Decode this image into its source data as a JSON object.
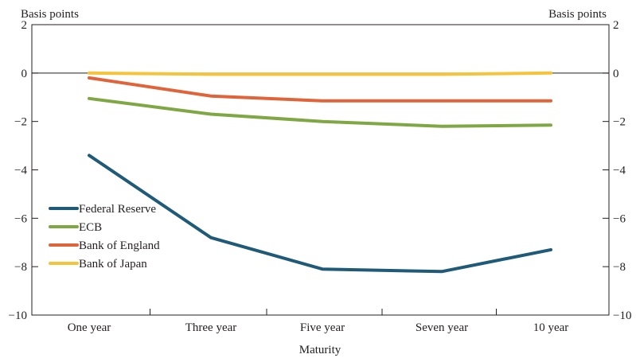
{
  "chart_data": {
    "type": "line",
    "xlabel": "Maturity",
    "ylabel_left": "Basis points",
    "ylabel_right": "Basis points",
    "ylim": [
      -10,
      2
    ],
    "yticks": [
      2,
      0,
      -2,
      -4,
      -6,
      -8,
      -10
    ],
    "ytick_labels": [
      "2",
      "0",
      "−2",
      "−4",
      "−6",
      "−8",
      "−10"
    ],
    "categories": [
      "One year",
      "Three year",
      "Five year",
      "Seven year",
      "10 year"
    ],
    "grid": false,
    "legend_position": "bottom-left",
    "series": [
      {
        "name": "Federal Reserve",
        "color": "#1f5a78",
        "values": [
          -3.4,
          -6.8,
          -8.1,
          -8.2,
          -7.3
        ]
      },
      {
        "name": "ECB",
        "color": "#7fa743",
        "values": [
          -1.05,
          -1.7,
          -2.0,
          -2.2,
          -2.15
        ]
      },
      {
        "name": "Bank of England",
        "color": "#e0643a",
        "values": [
          -0.2,
          -0.95,
          -1.15,
          -1.15,
          -1.15
        ]
      },
      {
        "name": "Bank of Japan",
        "color": "#f6c33c",
        "values": [
          0,
          -0.05,
          -0.05,
          -0.05,
          0
        ]
      }
    ]
  }
}
